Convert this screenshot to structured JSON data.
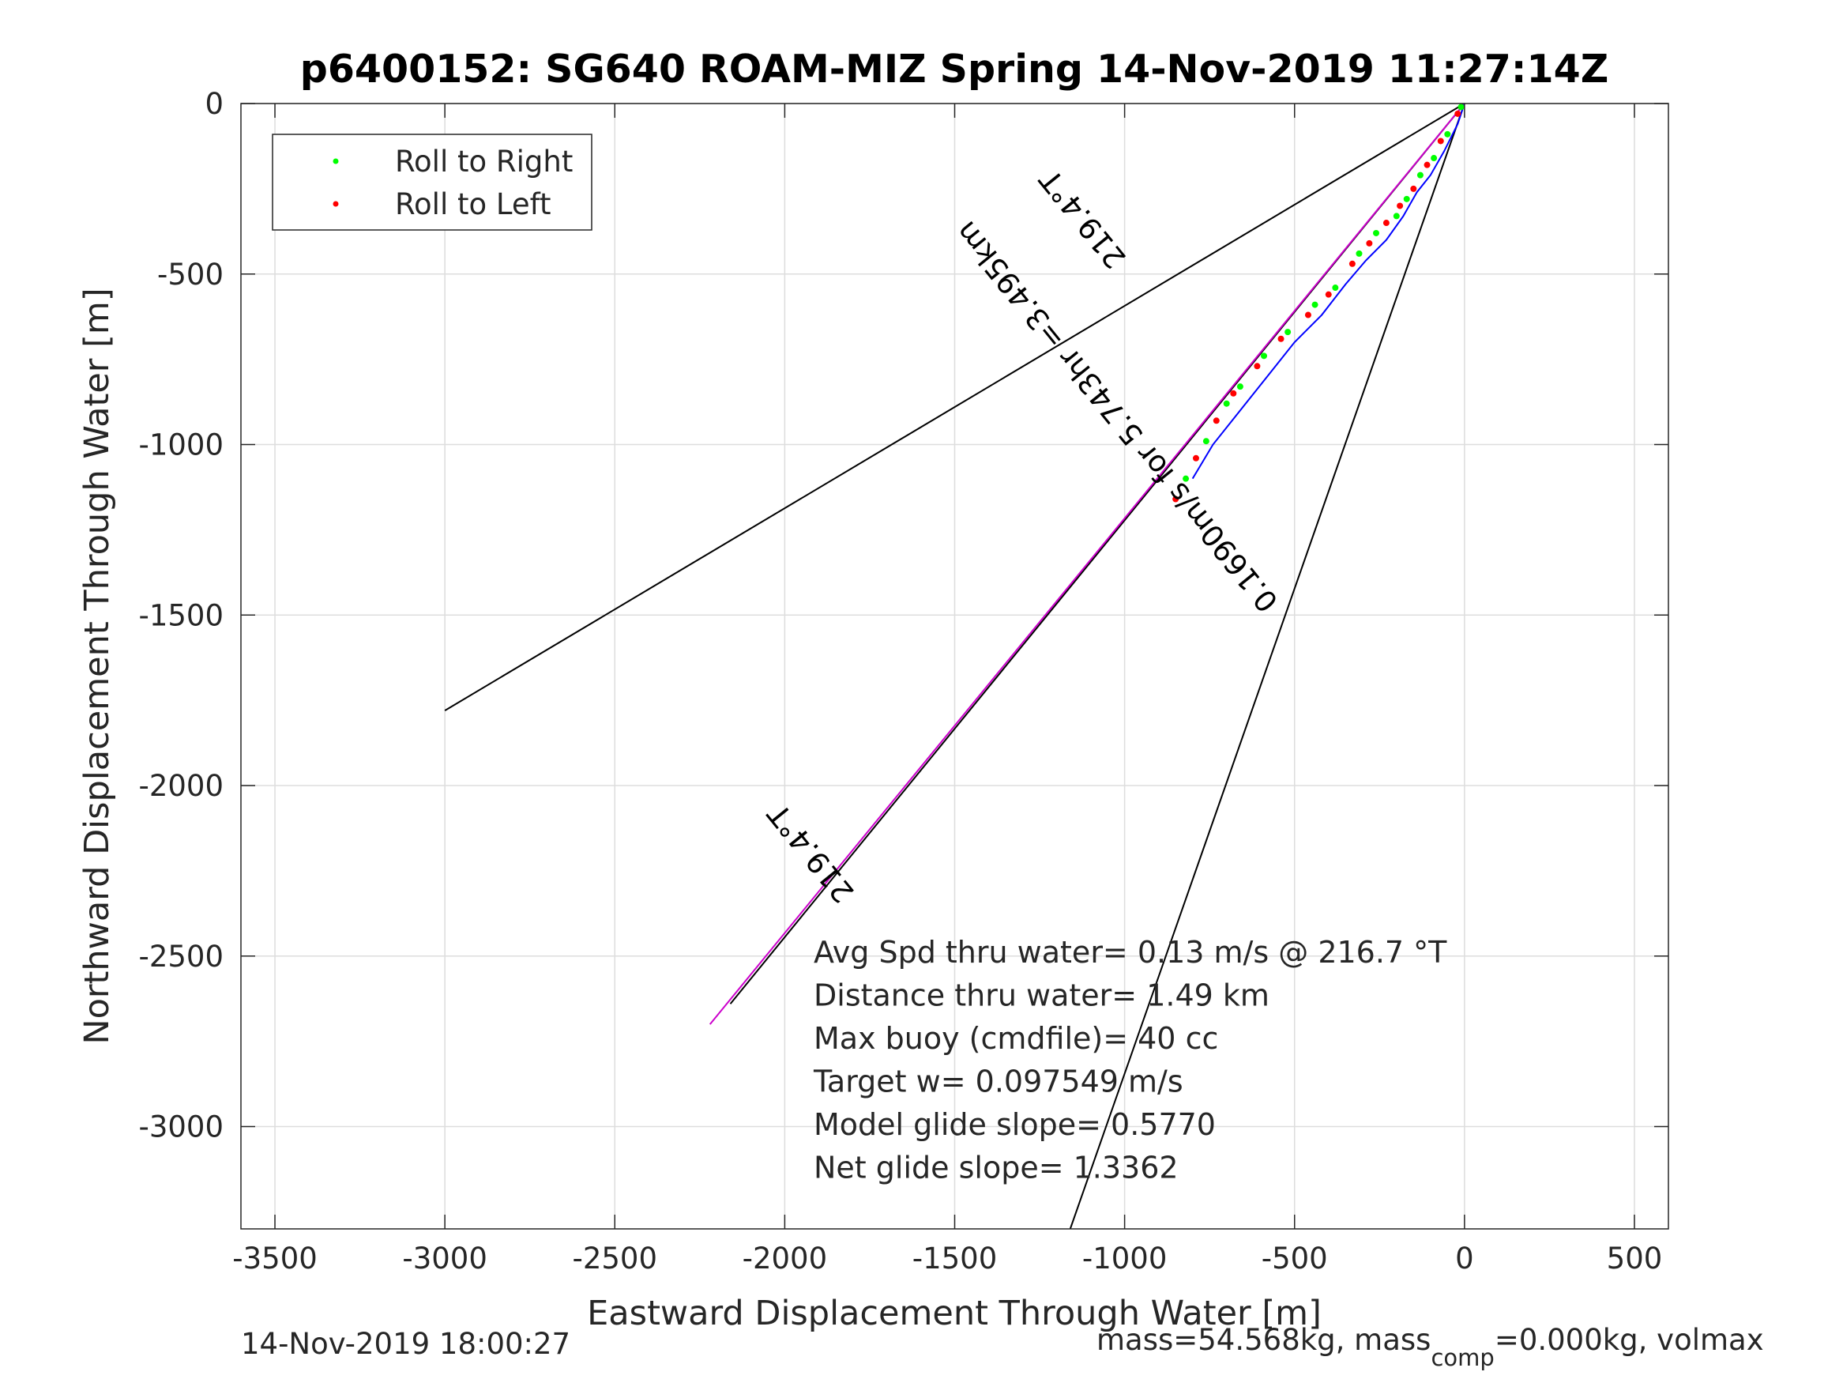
{
  "chart_data": {
    "type": "line",
    "title": "p6400152: SG640 ROAM-MIZ Spring 14-Nov-2019 11:27:14Z",
    "xlabel": "Eastward Displacement Through Water [m]",
    "ylabel": "Northward Displacement Through Water [m]",
    "xlim": [
      -3600,
      600
    ],
    "ylim": [
      -3300,
      0
    ],
    "xticks": [
      -3500,
      -3000,
      -2500,
      -2000,
      -1500,
      -1000,
      -500,
      0,
      500
    ],
    "yticks": [
      0,
      -500,
      -1000,
      -1500,
      -2000,
      -2500,
      -3000
    ],
    "xtick_labels": [
      "-3500",
      "-3000",
      "-2500",
      "-2000",
      "-1500",
      "-1000",
      "-500",
      "0",
      "500"
    ],
    "ytick_labels": [
      "0",
      "-500",
      "-1000",
      "-1500",
      "-2000",
      "-2500",
      "-3000"
    ],
    "grid": true,
    "legend": {
      "placement": "top-left",
      "entries": [
        {
          "label": "Roll to Right",
          "color": "#00ff00"
        },
        {
          "label": "Roll to Left",
          "color": "#ff0000"
        }
      ]
    },
    "reference_lines": [
      {
        "name": "",
        "color": "#000000",
        "x": [
          0,
          -3000
        ],
        "y": [
          0,
          -1780
        ]
      },
      {
        "name": "",
        "color": "#000000",
        "x": [
          0,
          -1160
        ],
        "y": [
          0,
          -3300
        ]
      },
      {
        "name": "",
        "color": "#000000",
        "x": [
          0,
          -2160
        ],
        "y": [
          0,
          -2640
        ]
      }
    ],
    "heading_line": {
      "color": "#cc00cc",
      "x": [
        0,
        -2220
      ],
      "y": [
        0,
        -2700
      ]
    },
    "track": {
      "color": "#0000ff",
      "x": [
        0,
        -20,
        -60,
        -100,
        -140,
        -180,
        -230,
        -290,
        -350,
        -420,
        -500,
        -580,
        -660,
        -740,
        -800
      ],
      "y": [
        0,
        -60,
        -140,
        -210,
        -260,
        -330,
        -400,
        -460,
        -530,
        -620,
        -700,
        -800,
        -900,
        -1000,
        -1100
      ]
    },
    "right_points": {
      "x": [
        -10,
        -50,
        -90,
        -130,
        -170,
        -200,
        -260,
        -310,
        -380,
        -440,
        -520,
        -590,
        -660,
        -700,
        -760,
        -820
      ],
      "y": [
        -10,
        -90,
        -160,
        -210,
        -280,
        -330,
        -380,
        -440,
        -540,
        -590,
        -670,
        -740,
        -830,
        -880,
        -990,
        -1100
      ]
    },
    "left_points": {
      "x": [
        -20,
        -70,
        -110,
        -150,
        -190,
        -230,
        -280,
        -330,
        -400,
        -460,
        -540,
        -610,
        -680,
        -730,
        -790,
        -850
      ],
      "y": [
        -30,
        -110,
        -180,
        -250,
        -300,
        -350,
        -410,
        -470,
        -560,
        -620,
        -690,
        -770,
        -850,
        -930,
        -1040,
        -1160
      ]
    },
    "annotations": [
      {
        "text": "219.4°T",
        "x": -1900,
        "y": -2180,
        "angle": 231
      },
      {
        "text": "219.4°T",
        "x": -1100,
        "y": -320,
        "angle": 231
      },
      {
        "text": "0.1690m/s for 5.743hr =3.495km",
        "x": -1000,
        "y": -900,
        "angle": 231
      }
    ],
    "stats": [
      "Avg Spd thru water=  0.13 m/s @ 216.7 °T",
      "Distance thru water=  1.49 km",
      "Max buoy (cmdfile)= 40 cc",
      "Target w= 0.097549 m/s",
      "Model glide slope= 0.5770",
      "Net glide slope= 1.3362"
    ],
    "footer_left": "14-Nov-2019 18:00:27",
    "footer_right_a": "mass=54.568kg, mass",
    "footer_right_sub": "comp",
    "footer_right_b": "=0.000kg, volmax"
  }
}
